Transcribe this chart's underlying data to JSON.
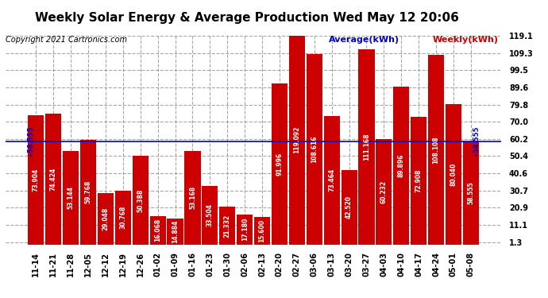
{
  "title": "Weekly Solar Energy & Average Production Wed May 12 20:06",
  "copyright": "Copyright 2021 Cartronics.com",
  "legend_avg": "Average(kWh)",
  "legend_weekly": "Weekly(kWh)",
  "categories": [
    "11-14",
    "11-21",
    "11-28",
    "12-05",
    "12-12",
    "12-19",
    "12-26",
    "01-02",
    "01-09",
    "01-16",
    "01-23",
    "01-30",
    "02-06",
    "02-13",
    "02-20",
    "02-27",
    "03-06",
    "03-13",
    "03-20",
    "03-27",
    "04-03",
    "04-10",
    "04-17",
    "04-24",
    "05-01",
    "05-08"
  ],
  "values": [
    73.904,
    74.424,
    53.144,
    59.768,
    29.048,
    30.768,
    50.388,
    16.068,
    14.884,
    53.168,
    33.504,
    21.332,
    17.18,
    15.6,
    91.996,
    119.092,
    108.616,
    73.464,
    42.52,
    111.168,
    60.232,
    89.896,
    72.908,
    108.108,
    80.04,
    58.555
  ],
  "average_line": 58.555,
  "bar_color": "#cc0000",
  "avg_line_color": "#0000cc",
  "text_color_in_bar": "#ffffff",
  "ylim_min": 0,
  "ylim_max": 119.1,
  "yticks": [
    1.3,
    11.1,
    20.9,
    30.7,
    40.6,
    50.4,
    60.2,
    70.0,
    79.8,
    89.6,
    99.5,
    109.3,
    119.1
  ],
  "background_color": "#ffffff",
  "title_fontsize": 11,
  "copyright_fontsize": 7,
  "bar_label_fontsize": 5.5,
  "axis_label_fontsize": 7,
  "avg_label_fontsize": 6
}
